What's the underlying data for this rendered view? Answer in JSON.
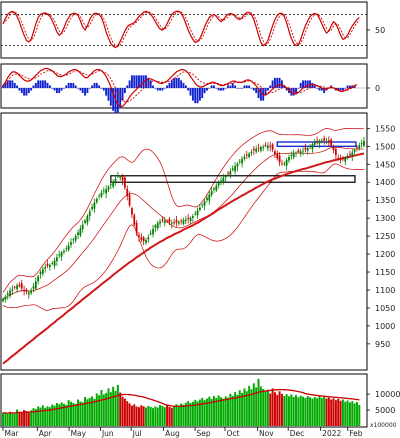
{
  "chart_data": [
    {
      "panel": "stochastic",
      "type": "line",
      "ylim": [
        0,
        100
      ],
      "ticks": [
        "50"
      ],
      "reference_levels": [
        80,
        20
      ],
      "colors": {
        "main": "#cc0000"
      },
      "values": [
        62,
        72,
        80,
        84,
        86,
        83,
        76,
        66,
        52,
        40,
        30,
        27,
        32,
        46,
        62,
        74,
        80,
        82,
        83,
        80,
        76,
        68,
        58,
        46,
        40,
        44,
        54,
        66,
        74,
        80,
        82,
        82,
        78,
        68,
        56,
        50,
        58,
        70,
        78,
        82,
        82,
        80,
        74,
        62,
        46,
        34,
        24,
        19,
        16,
        20,
        28,
        38,
        48,
        56,
        60,
        62,
        64,
        70,
        76,
        80,
        84,
        86,
        84,
        80,
        74,
        66,
        58,
        52,
        50,
        54,
        62,
        72,
        80,
        84,
        86,
        86,
        82,
        74,
        62,
        50,
        40,
        32,
        26,
        28,
        34,
        44,
        56,
        66,
        74,
        78,
        80,
        76,
        70,
        66,
        70,
        76,
        80,
        82,
        80,
        76,
        72,
        70,
        74,
        80,
        84,
        84,
        80,
        70,
        56,
        40,
        26,
        20,
        22,
        30,
        44,
        58,
        70,
        78,
        82,
        82,
        76,
        64,
        48,
        34,
        24,
        20,
        22,
        32,
        46,
        58,
        68,
        76,
        80,
        82,
        80,
        72,
        62,
        52,
        44,
        48,
        58,
        66,
        62,
        52,
        40,
        32,
        34,
        40,
        50,
        58,
        64,
        70,
        74
      ]
    },
    {
      "panel": "macd",
      "type": "line+bar",
      "ticks": [
        "0"
      ],
      "colors": {
        "line": "#cc0000",
        "histogram": "#1020d0"
      },
      "macd": [
        2,
        5,
        9,
        12,
        14,
        14,
        13,
        11,
        9,
        7,
        6,
        6,
        7,
        9,
        11,
        13,
        15,
        16,
        17,
        17,
        16,
        15,
        13,
        11,
        10,
        10,
        11,
        12,
        14,
        15,
        16,
        16,
        15,
        13,
        11,
        9,
        9,
        11,
        13,
        15,
        16,
        16,
        15,
        13,
        10,
        6,
        1,
        -5,
        -10,
        -14,
        -16,
        -16,
        -14,
        -11,
        -8,
        -5,
        -3,
        -1,
        1,
        3,
        5,
        7,
        8,
        8,
        7,
        6,
        5,
        4,
        4,
        5,
        6,
        8,
        10,
        12,
        14,
        15,
        16,
        16,
        15,
        13,
        10,
        7,
        4,
        2,
        1,
        1,
        2,
        3,
        4,
        5,
        5,
        4,
        3,
        2,
        2,
        3,
        4,
        5,
        6,
        6,
        5,
        5,
        5,
        6,
        7,
        7,
        6,
        4,
        2,
        -1,
        -4,
        -6,
        -6,
        -5,
        -3,
        -1,
        1,
        2,
        3,
        3,
        2,
        0,
        -2,
        -4,
        -5,
        -5,
        -4,
        -2,
        0,
        1,
        2,
        3,
        3,
        3,
        2,
        1,
        0,
        -1,
        -1,
        0,
        1,
        0,
        -1,
        -2,
        -3,
        -3,
        -2,
        -1,
        0,
        1,
        2,
        3
      ],
      "signal": [
        1,
        3,
        6,
        9,
        11,
        12,
        12,
        12,
        11,
        10,
        9,
        8,
        8,
        8,
        9,
        10,
        12,
        13,
        14,
        15,
        15,
        15,
        14,
        13,
        12,
        11,
        11,
        11,
        12,
        13,
        14,
        15,
        15,
        14,
        13,
        12,
        11,
        11,
        12,
        13,
        14,
        15,
        15,
        14,
        13,
        11,
        8,
        4,
        0,
        -4,
        -8,
        -11,
        -12,
        -12,
        -11,
        -10,
        -8,
        -6,
        -4,
        -2,
        0,
        2,
        4,
        5,
        6,
        6,
        6,
        5,
        5,
        5,
        5,
        6,
        7,
        8,
        10,
        11,
        13,
        14,
        14,
        14,
        13,
        12,
        10,
        8,
        6,
        5,
        4,
        4,
        4,
        4,
        4,
        4,
        4,
        3,
        3,
        3,
        3,
        4,
        4,
        5,
        5,
        5,
        5,
        5,
        6,
        6,
        6,
        5,
        4,
        3,
        1,
        -1,
        -3,
        -4,
        -4,
        -4,
        -3,
        -2,
        -1,
        0,
        1,
        1,
        0,
        -1,
        -2,
        -3,
        -4,
        -4,
        -3,
        -2,
        -1,
        0,
        1,
        2,
        2,
        2,
        1,
        1,
        0,
        0,
        0,
        0,
        0,
        -1,
        -2,
        -2,
        -2,
        -2,
        -1,
        0,
        1
      ]
    },
    {
      "panel": "price",
      "type": "candlestick",
      "ylim": [
        880,
        1590
      ],
      "yticks": [
        950,
        1000,
        1050,
        1100,
        1150,
        1200,
        1250,
        1300,
        1350,
        1400,
        1450,
        1500,
        1550
      ],
      "colors": {
        "up": "#008000",
        "down": "#cc0000",
        "ma_long": "#d01818",
        "bands": "#cc0000",
        "resistance_box": "#1a2bd6",
        "support_box": "#000000"
      },
      "close": [
        1075,
        1081,
        1090,
        1098,
        1102,
        1107,
        1113,
        1111,
        1104,
        1098,
        1095,
        1093,
        1099,
        1110,
        1124,
        1138,
        1150,
        1158,
        1164,
        1167,
        1170,
        1175,
        1182,
        1191,
        1199,
        1205,
        1209,
        1216,
        1224,
        1233,
        1241,
        1250,
        1260,
        1271,
        1282,
        1294,
        1306,
        1319,
        1331,
        1343,
        1354,
        1363,
        1371,
        1377,
        1381,
        1388,
        1394,
        1401,
        1409,
        1418,
        1416,
        1405,
        1385,
        1361,
        1336,
        1310,
        1282,
        1259,
        1247,
        1240,
        1236,
        1239,
        1247,
        1258,
        1270,
        1280,
        1287,
        1291,
        1293,
        1293,
        1291,
        1289,
        1287,
        1287,
        1288,
        1290,
        1292,
        1294,
        1296,
        1298,
        1301,
        1306,
        1313,
        1321,
        1329,
        1338,
        1347,
        1357,
        1366,
        1375,
        1383,
        1391,
        1398,
        1405,
        1412,
        1418,
        1424,
        1431,
        1438,
        1445,
        1452,
        1459,
        1465,
        1470,
        1475,
        1480,
        1485,
        1489,
        1493,
        1496,
        1498,
        1499,
        1501,
        1502,
        1499,
        1491,
        1479,
        1466,
        1455,
        1450,
        1454,
        1462,
        1470,
        1476,
        1480,
        1482,
        1484,
        1486,
        1488,
        1491,
        1495,
        1500,
        1506,
        1511,
        1514,
        1516,
        1516,
        1516,
        1515,
        1511,
        1502,
        1489,
        1476,
        1467,
        1464,
        1464,
        1467,
        1472,
        1477,
        1483,
        1490,
        1497,
        1503,
        1509,
        1515
      ],
      "ma_long": [
        895,
        900,
        905,
        911,
        916,
        921,
        926,
        932,
        937,
        942,
        948,
        953,
        958,
        963,
        969,
        974,
        979,
        984,
        989,
        994,
        1000,
        1005,
        1010,
        1016,
        1021,
        1026,
        1031,
        1037,
        1042,
        1047,
        1052,
        1058,
        1063,
        1068,
        1074,
        1079,
        1084,
        1089,
        1095,
        1100,
        1105,
        1110,
        1116,
        1121,
        1126,
        1131,
        1136,
        1142,
        1147,
        1152,
        1157,
        1162,
        1167,
        1172,
        1177,
        1181,
        1186,
        1191,
        1195,
        1200,
        1204,
        1209,
        1213,
        1218,
        1222,
        1226,
        1230,
        1234,
        1237,
        1241,
        1245,
        1248,
        1251,
        1255,
        1258,
        1261,
        1264,
        1268,
        1271,
        1274,
        1277,
        1280,
        1284,
        1287,
        1291,
        1295,
        1299,
        1303,
        1307,
        1311,
        1315,
        1320,
        1324,
        1328,
        1332,
        1336,
        1340,
        1344,
        1348,
        1352,
        1355,
        1359,
        1363,
        1366,
        1370,
        1374,
        1377,
        1381,
        1385,
        1388,
        1392,
        1395,
        1399,
        1402,
        1405,
        1408,
        1410,
        1413,
        1415,
        1418,
        1420,
        1423,
        1425,
        1427,
        1429,
        1431,
        1433,
        1435,
        1437,
        1438,
        1440,
        1442,
        1444,
        1446,
        1448,
        1450,
        1452,
        1454,
        1456,
        1457,
        1459,
        1461,
        1462,
        1464,
        1465,
        1467,
        1468,
        1470,
        1471,
        1473,
        1474,
        1476,
        1477,
        1479,
        1480
      ]
    },
    {
      "panel": "volume",
      "type": "bar",
      "ylim": [
        0,
        16000
      ],
      "yticks": [
        5000,
        10000
      ],
      "unit_label": "x100000",
      "colors": {
        "up": "#00aa00",
        "down": "#cc0000",
        "ma": "#cc0000"
      },
      "values": [
        4200,
        4000,
        3800,
        4500,
        4100,
        3900,
        5200,
        4400,
        4100,
        5000,
        4700,
        4300,
        4900,
        5600,
        5300,
        6100,
        5800,
        6500,
        5700,
        6200,
        5900,
        6700,
        6400,
        7200,
        6800,
        7400,
        7000,
        6600,
        8100,
        7600,
        7200,
        6900,
        8300,
        7700,
        7400,
        9100,
        8400,
        8800,
        9300,
        8500,
        10200,
        9600,
        11300,
        9900,
        10400,
        11800,
        10600,
        12300,
        11000,
        12900,
        10500,
        9200,
        8600,
        7800,
        7100,
        6400,
        6800,
        6100,
        5900,
        6500,
        6200,
        5800,
        6300,
        6000,
        5600,
        6100,
        5800,
        6600,
        6300,
        5900,
        6400,
        6000,
        5700,
        6200,
        6800,
        6400,
        7000,
        6700,
        7300,
        7800,
        7200,
        7600,
        8200,
        7700,
        8300,
        8800,
        8100,
        8600,
        9200,
        8500,
        9400,
        8800,
        9600,
        9000,
        8600,
        9300,
        8900,
        10100,
        9400,
        10600,
        9800,
        11200,
        10400,
        11800,
        10900,
        12600,
        11500,
        13400,
        12100,
        14800,
        12400,
        11600,
        10800,
        11400,
        10200,
        11800,
        10600,
        9800,
        10900,
        10100,
        9400,
        10000,
        9300,
        9900,
        9100,
        9700,
        9000,
        9500,
        9200,
        8800,
        9400,
        9000,
        8600,
        9100,
        8700,
        9300,
        8800,
        9200,
        8600,
        8900,
        8300,
        8700,
        8100,
        8500,
        7900,
        8300,
        7600,
        8000,
        7400,
        7800,
        7100,
        7500,
        6600
      ]
    }
  ],
  "x_labels": [
    "Mar",
    "Apr",
    "May",
    "Jun",
    "Jul",
    "Aug",
    "Sep",
    "Oct",
    "Nov",
    "Dec",
    "2022",
    "Feb"
  ],
  "resistance_zone": [
    1500,
    1512
  ],
  "support_zone": [
    1400,
    1418
  ]
}
